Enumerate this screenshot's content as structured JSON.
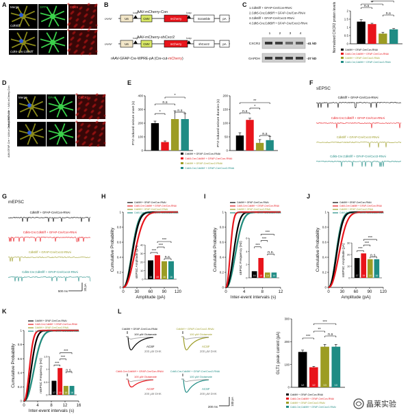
{
  "panels": {
    "A": {
      "letter": "A",
      "row_labels": [
        "Cdk5f/f",
        "Cdk5-Cre;Cdk5f/f"
      ],
      "channels": [
        "Merge",
        "GFP",
        "CDK5"
      ]
    },
    "B": {
      "letter": "B",
      "construct1_name": "AAV-mCherry-Con",
      "construct2_name": "AAV-mCherry-shCxcr2",
      "rAAV": "rAAV",
      "boxes1": [
        "U6",
        "CMV",
        "mCherry",
        "Scramble",
        "pA"
      ],
      "boxes2": [
        "U6",
        "CMV",
        "mCherry",
        "shCxcr2",
        "pA"
      ],
      "loxp": "loxp",
      "cre_line_prefix": "rAAV-GFAP-Cre-WPRE-pA (Cre-cut-",
      "cre_line_red": "mCherry",
      "cre_line_suffix": ")"
    },
    "C": {
      "letter": "C",
      "group_lines": [
        "1.Cdk5f/f + GFAP-Cre/Con-RNAi",
        "2.Cdk5-Cre;Cdk5f/f + GFAP-Cre/Con-RNAi",
        "3.Cdk5f/f + GFAP-Cre/Cxcr2-RNAi",
        "4.Cdk5-Cre;Cdk5f/f + GFAP-Cre/Cxcr2-RNAi"
      ],
      "lanes": [
        "1",
        "2",
        "3",
        "4"
      ],
      "blot_labels": [
        "CXCR2",
        "GAPDH"
      ],
      "mw": [
        "-41 kD",
        "-37 kD"
      ],
      "ylabel": "Normalized CXCR2 protein levels",
      "legend": [
        "Cdk5f/f + GFAP-Cre/Con-RNAi",
        "Cdk5-Cre;Cdk5f/f + GFAP-Cre/Con-RNAi",
        "Cdk5f/f + GFAP-Cre/Cxcr2-RNAi",
        "Cdk5-Cre;Cdk5f/f + GFAP-Cre/Cxcr2-RNAi"
      ],
      "sig": [
        "n.s",
        "**",
        "*",
        "n.s"
      ]
    },
    "D": {
      "letter": "D",
      "row_labels": [
        "AAV-GFAP-Cre + AAV-mCherry-Con",
        "AAV-GFAP-Cre + AAV-mCherry-shCxcr2"
      ],
      "channels": [
        "Merge",
        "GFAP",
        "CXCR2"
      ]
    },
    "E": {
      "letter": "E",
      "ylabel_left": "PTZ-induced seizure onset (s)",
      "ylabel_right": "PTZ-induced seizure duration (s)",
      "legend": [
        "Cdk5f/f + GFAP-Cre/Con-RNAi",
        "Cdk5-Cre;Cdk5f/f + GFAP-Cre/Con-RNAi",
        "Cdk5f/f + GFAP-Cre/Cxcr2-RNAi",
        "Cdk5-Cre;Cdk5f/f + GFAP-Cre/Cxcr2-RNAi"
      ],
      "sig_left": [
        "*",
        "n.s",
        "*",
        "n.s"
      ],
      "sig_right": [
        "**",
        "n.s",
        "*",
        "n.s"
      ]
    },
    "F": {
      "letter": "F",
      "title": "sEPSC",
      "trace_labels": [
        "Cdk5f/f + GFAP-Cre/Con-RNAi",
        "Cdk5-Cre;Cdk5f/f + GFAP-Cre/Con-RNAi",
        "Cdk5f/f + GFAP-Cre/Cxcr2-RNAi",
        "Cdk5-Cre;Cdk5f/f + GFAP-Cre/Cxcr2-RNAi"
      ]
    },
    "G": {
      "letter": "G",
      "title": "mEPSC",
      "trace_labels": [
        "Cdk5f/f + GFAP-Cre/Con-RNAi",
        "Cdk5-Cre;Cdk5f/f + GFAP-Cre/Con-RNAi",
        "Cdk5f/f + GFAP-Cre/Cxcr2-RNAi",
        "Cdk5-Cre;Cdk5f/f + GFAP-Cre/Cxcr2-RNAi"
      ],
      "scale_time": "500 ms",
      "scale_amp": "20 pA"
    },
    "H": {
      "letter": "H",
      "xlabel": "Amplitude (pA)",
      "ylabel": "Cumulative Probability",
      "inset_ylabel": "sEPSC Amplitude (pA)"
    },
    "I": {
      "letter": "I",
      "xlabel": "Inter-event intervals (s)",
      "ylabel": "Cumulative Probability",
      "inset_ylabel": "sEPSC Frequency (Hz)"
    },
    "J": {
      "letter": "J",
      "xlabel": "Amplitude (pA)",
      "ylabel": "Cumulative Probability",
      "inset_ylabel": "mEPSC Amplitude (pA)"
    },
    "K": {
      "letter": "K",
      "xlabel": "Inter-event intervals (s)",
      "ylabel": "Cumulative Probability",
      "inset_ylabel": "mEPSC Frequency (Hz)"
    },
    "L": {
      "letter": "L",
      "glutamate": "100 μM Glutamate",
      "acsf": "ACSF",
      "dhk": "200 μM DHK",
      "ylabel": "GLT1 peak current (pA)",
      "scale_time": "200 ms",
      "scale_amp": "100 pA",
      "trace_titles": [
        "Cdk5f/f + GFAP-Cre/Con-RNAi",
        "Cdk5f/f + GFAP-Cre/Cxcr2-RNAi",
        "Cdk5-Cre;Cdk5f/f + GFAP-Cre/Con-RNAi",
        "Cdk5-Cre;Cdk5f/f + GFAP-Cre/Cxcr2-RNAi"
      ],
      "legend": [
        "Cdk5f/f + GFAP-Cre/Con-RNAi",
        "Cdk5-Cre;Cdk5f/f + GFAP-Cre/Con-RNAi",
        "Cdk5f/f + GFAP-Cre/Cxcr2-RNAi",
        "Cdk5-Cre;Cdk5f/f + GFAP-Cre/Cxcr2-RNAi"
      ]
    }
  },
  "watermark": "晶莱实验",
  "colors": {
    "g1": "#000000",
    "g2": "#e8141b",
    "g3": "#9c9c24",
    "g4": "#1f8c84",
    "green": "#39b54a",
    "red": "#d81e1e"
  },
  "chart_data": [
    {
      "id": "C",
      "type": "bar",
      "categories": [
        "1",
        "2",
        "3",
        "4"
      ],
      "values": [
        1.35,
        1.2,
        0.62,
        0.88
      ],
      "errors": [
        0.12,
        0.05,
        0.08,
        0.05
      ],
      "ylim": [
        0,
        2.0
      ],
      "yticks": [
        0,
        0.5,
        1.0,
        1.5,
        2.0
      ]
    },
    {
      "id": "E-onset",
      "type": "bar",
      "categories": [
        "1",
        "2",
        "3",
        "4"
      ],
      "values": [
        200,
        62,
        230,
        230
      ],
      "errors": [
        15,
        8,
        60,
        40
      ],
      "ylim": [
        0,
        400
      ],
      "yticks": [
        0,
        100,
        200,
        300,
        400
      ]
    },
    {
      "id": "E-duration",
      "type": "bar",
      "categories": [
        "1",
        "2",
        "3",
        "4"
      ],
      "values": [
        55,
        112,
        28,
        38
      ],
      "errors": [
        10,
        6,
        12,
        14
      ],
      "ylim": [
        0,
        200
      ],
      "yticks": [
        0,
        50,
        100,
        150,
        200
      ]
    },
    {
      "id": "H",
      "type": "line",
      "xlim": [
        0,
        120
      ],
      "xticks": [
        0,
        30,
        60,
        90,
        120
      ],
      "ylim": [
        0,
        1.0
      ],
      "yticks": [
        0,
        0.2,
        0.4,
        0.6,
        0.8,
        1.0
      ],
      "medians": [
        19,
        24,
        18,
        18
      ],
      "inset": {
        "values": [
          22,
          28,
          21,
          21
        ],
        "ylim": [
          0,
          40
        ],
        "yticks": [
          0,
          10,
          20,
          30,
          40
        ],
        "n": [
          16,
          19,
          16,
          16
        ],
        "sig": [
          "***",
          "***",
          "***",
          "n.s."
        ]
      }
    },
    {
      "id": "I",
      "type": "line",
      "xlim": [
        0,
        12
      ],
      "xticks": [
        0,
        4,
        8,
        12
      ],
      "ylim": [
        0,
        1.0
      ],
      "yticks": [
        0,
        0.2,
        0.4,
        0.6,
        0.8,
        1.0
      ],
      "medians": [
        1.6,
        0.9,
        2.0,
        2.0
      ],
      "inset": {
        "values": [
          1.0,
          3.0,
          0.8,
          0.8
        ],
        "ylim": [
          0,
          6
        ],
        "yticks": [
          0,
          2,
          4,
          6
        ],
        "n": [
          16,
          19,
          16,
          16
        ],
        "sig": [
          "***",
          "***",
          "***",
          "n.s."
        ]
      }
    },
    {
      "id": "J",
      "type": "line",
      "xlim": [
        0,
        120
      ],
      "xticks": [
        0,
        30,
        60,
        90,
        120
      ],
      "ylim": [
        0,
        1.0
      ],
      "yticks": [
        0,
        0.2,
        0.4,
        0.6,
        0.8,
        1.0
      ],
      "medians": [
        17,
        22,
        16,
        16
      ],
      "inset": {
        "values": [
          17,
          21,
          16,
          16
        ],
        "ylim": [
          0,
          30
        ],
        "yticks": [
          0,
          10,
          20,
          30
        ],
        "n": [
          17,
          19,
          18,
          16
        ],
        "sig": [
          "***",
          "***",
          "***",
          "n.s."
        ]
      }
    },
    {
      "id": "K",
      "type": "line",
      "xlim": [
        0,
        16
      ],
      "xticks": [
        0,
        4,
        8,
        12,
        16
      ],
      "ylim": [
        0,
        1.0
      ],
      "yticks": [
        0,
        0.2,
        0.4,
        0.6,
        0.8,
        1.0
      ],
      "medians": [
        2.0,
        1.5,
        2.8,
        2.8
      ],
      "inset": {
        "values": [
          0.55,
          1.05,
          0.35,
          0.35
        ],
        "ylim": [
          0,
          1.5
        ],
        "yticks": [
          0,
          0.5,
          1.0,
          1.5
        ],
        "n": [
          17,
          19,
          18,
          16
        ],
        "sig": [
          "***",
          "***",
          "***",
          "n.s."
        ]
      }
    },
    {
      "id": "L",
      "type": "bar",
      "categories": [
        "1",
        "2",
        "3",
        "4"
      ],
      "values": [
        155,
        88,
        178,
        178
      ],
      "errors": [
        8,
        4,
        10,
        10
      ],
      "ylim": [
        0,
        300
      ],
      "yticks": [
        0,
        100,
        200,
        300
      ],
      "n": [
        12,
        12,
        13,
        10
      ],
      "sig": [
        "***",
        "**",
        "***",
        "n.s"
      ]
    }
  ]
}
